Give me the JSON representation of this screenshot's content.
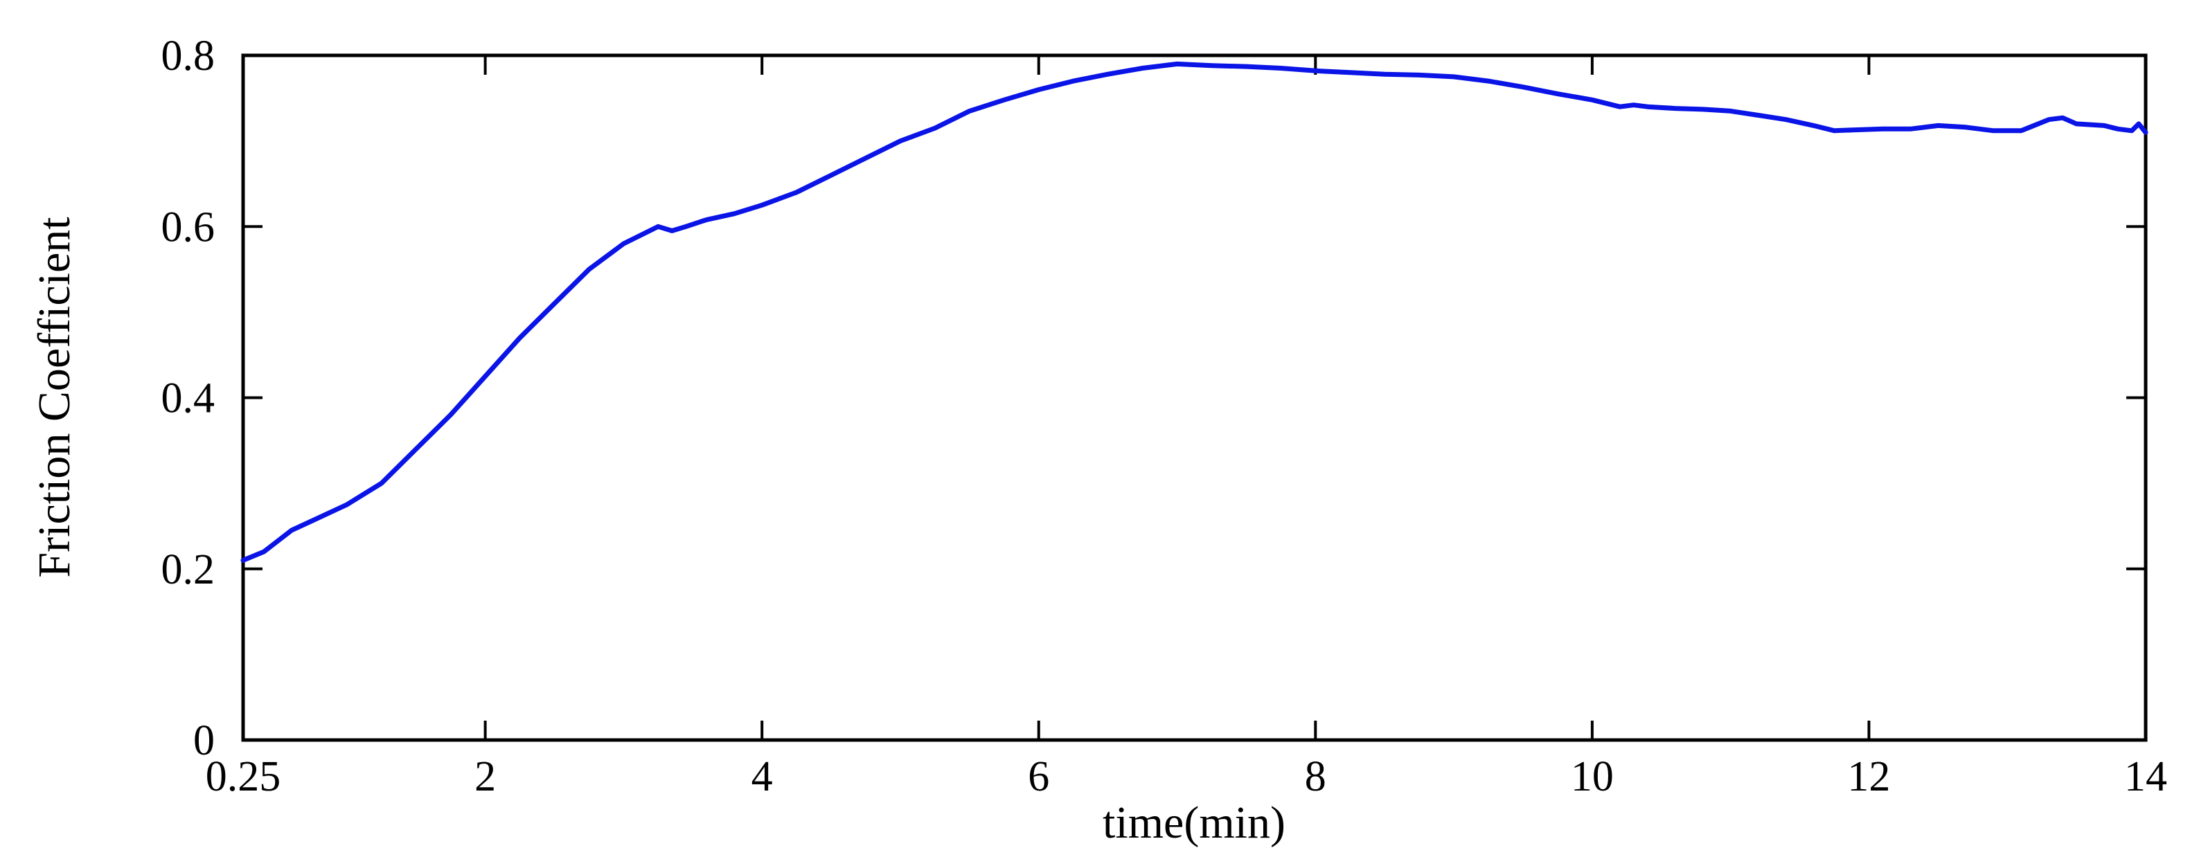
{
  "chart_data": {
    "type": "line",
    "xlabel": "time(min)",
    "ylabel": "Friction Coefficient",
    "xlim": [
      0.25,
      14
    ],
    "ylim": [
      0,
      0.8
    ],
    "x_ticks": [
      {
        "value": 0.25,
        "label": "0.25"
      },
      {
        "value": 2,
        "label": "2"
      },
      {
        "value": 4,
        "label": "4"
      },
      {
        "value": 6,
        "label": "6"
      },
      {
        "value": 8,
        "label": "8"
      },
      {
        "value": 10,
        "label": "10"
      },
      {
        "value": 12,
        "label": "12"
      },
      {
        "value": 14,
        "label": "14"
      }
    ],
    "y_ticks": [
      {
        "value": 0,
        "label": "0"
      },
      {
        "value": 0.2,
        "label": "0.2"
      },
      {
        "value": 0.4,
        "label": "0.4"
      },
      {
        "value": 0.6,
        "label": "0.6"
      },
      {
        "value": 0.8,
        "label": "0.8"
      }
    ],
    "grid": false,
    "series": [
      {
        "color": "#0a14e6",
        "x": [
          0.25,
          0.4,
          0.6,
          0.8,
          1.0,
          1.25,
          1.5,
          1.75,
          2.0,
          2.25,
          2.5,
          2.75,
          3.0,
          3.25,
          3.35,
          3.45,
          3.6,
          3.8,
          4.0,
          4.25,
          4.5,
          4.75,
          5.0,
          5.25,
          5.5,
          5.75,
          6.0,
          6.25,
          6.5,
          6.75,
          7.0,
          7.25,
          7.5,
          7.75,
          8.0,
          8.25,
          8.5,
          8.75,
          9.0,
          9.25,
          9.5,
          9.75,
          10.0,
          10.2,
          10.3,
          10.4,
          10.6,
          10.8,
          11.0,
          11.2,
          11.4,
          11.6,
          11.75,
          11.9,
          12.1,
          12.3,
          12.5,
          12.7,
          12.9,
          13.1,
          13.3,
          13.4,
          13.5,
          13.7,
          13.8,
          13.9,
          13.95,
          14.0
        ],
        "y": [
          0.21,
          0.22,
          0.245,
          0.26,
          0.275,
          0.3,
          0.34,
          0.38,
          0.425,
          0.47,
          0.51,
          0.55,
          0.58,
          0.6,
          0.595,
          0.6,
          0.608,
          0.615,
          0.625,
          0.64,
          0.66,
          0.68,
          0.7,
          0.715,
          0.735,
          0.748,
          0.76,
          0.77,
          0.778,
          0.785,
          0.79,
          0.788,
          0.787,
          0.785,
          0.782,
          0.78,
          0.778,
          0.777,
          0.775,
          0.77,
          0.763,
          0.755,
          0.748,
          0.74,
          0.742,
          0.74,
          0.738,
          0.737,
          0.735,
          0.73,
          0.725,
          0.718,
          0.712,
          0.713,
          0.714,
          0.714,
          0.718,
          0.716,
          0.712,
          0.712,
          0.725,
          0.727,
          0.72,
          0.718,
          0.714,
          0.712,
          0.72,
          0.71
        ]
      }
    ]
  }
}
